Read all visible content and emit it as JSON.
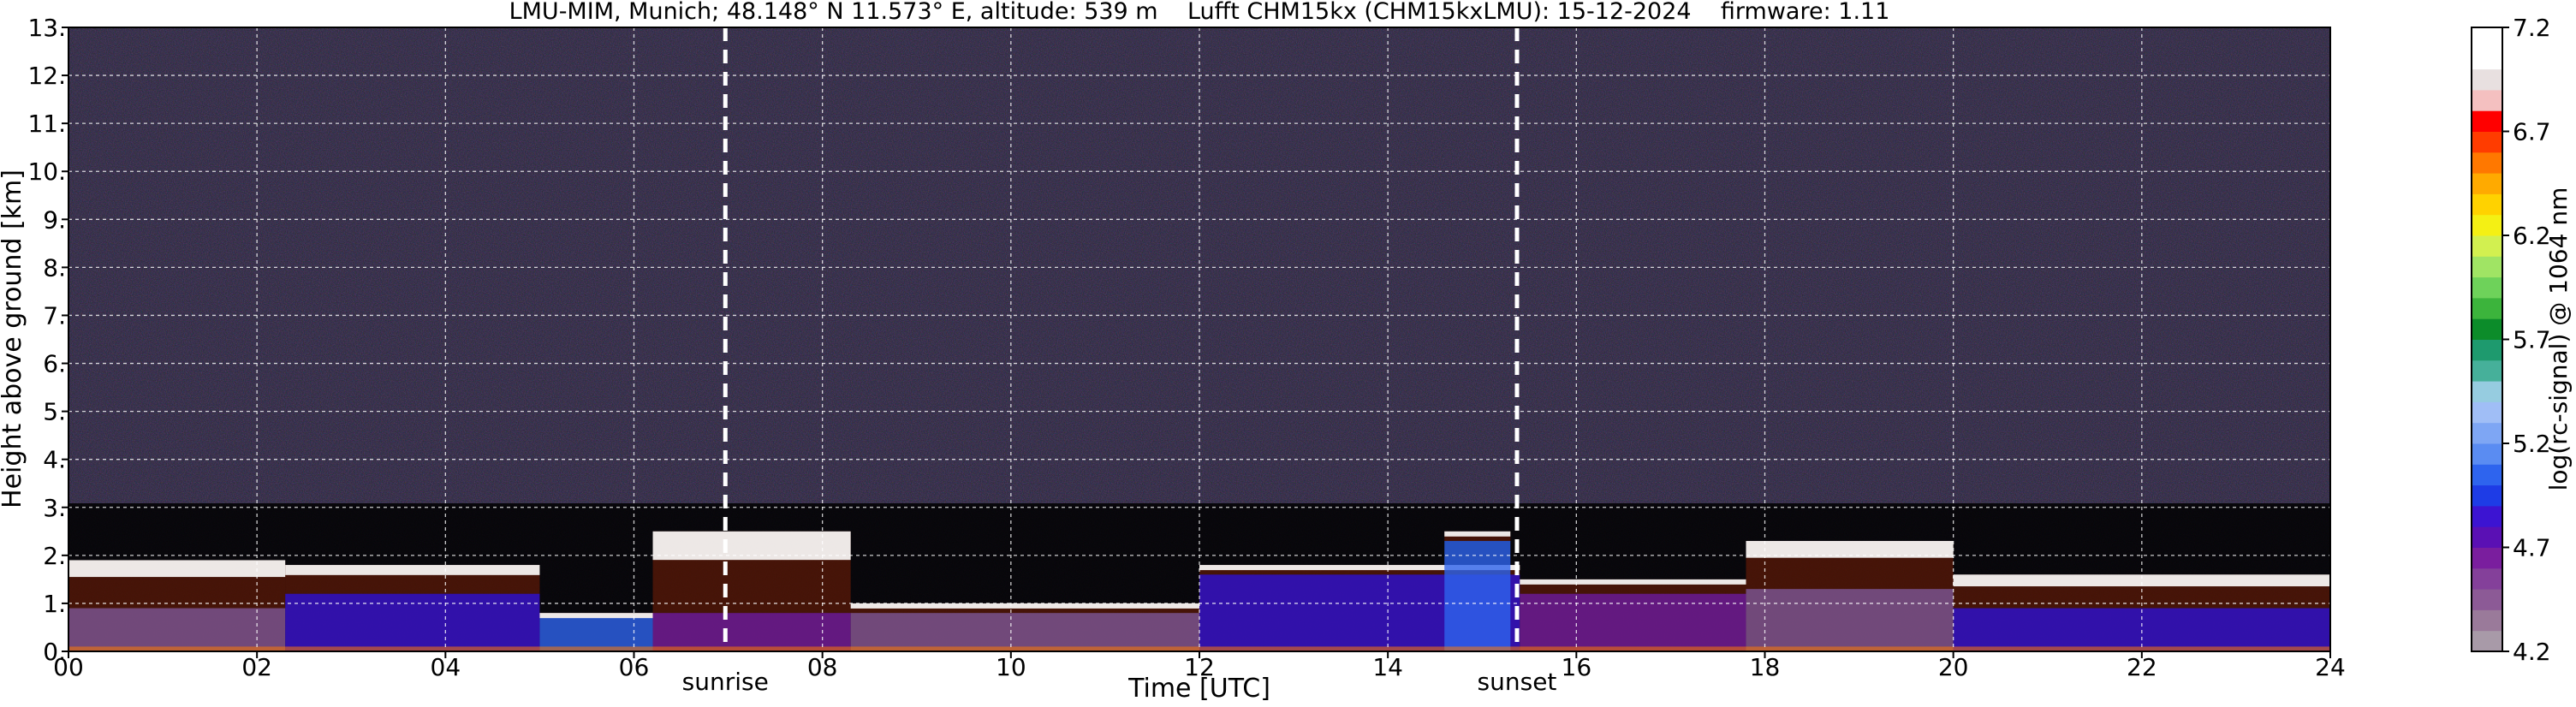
{
  "chart_data": {
    "type": "heatmap",
    "title": "LMU-MIM, Munich; 48.148° N 11.573° E, altitude: 539 m    Lufft CHM15kx (CHM15kxLMU): 15-12-2024    firmware: 1.11",
    "xlabel": "Time [UTC]",
    "ylabel": "Height above ground [km]",
    "xlim": [
      0,
      24
    ],
    "ylim": [
      0,
      13
    ],
    "xticks": [
      "00",
      "02",
      "04",
      "06",
      "08",
      "10",
      "12",
      "14",
      "16",
      "18",
      "20",
      "22",
      "24"
    ],
    "yticks": [
      "0.",
      "1.",
      "2.",
      "3.",
      "4.",
      "5.",
      "6.",
      "7.",
      "8.",
      "9.",
      "10.",
      "11.",
      "12.",
      "13."
    ],
    "grid": true,
    "markers": [
      {
        "label": "sunrise",
        "time": 6.97
      },
      {
        "label": "sunset",
        "time": 15.37
      }
    ],
    "colorbar": {
      "label": "log(rc-signal) @ 1064 nm",
      "range": [
        4.2,
        7.2
      ],
      "ticks": [
        "4.2",
        "4.7",
        "5.2",
        "5.7",
        "6.2",
        "6.7",
        "7.2"
      ],
      "colors": [
        "#a89aa8",
        "#9a7a9a",
        "#8c5a96",
        "#84409a",
        "#7a1e9e",
        "#5a10b4",
        "#3c14d2",
        "#1e3ce6",
        "#2e64ee",
        "#5a8cf2",
        "#7ea6f4",
        "#a0bef6",
        "#96cce0",
        "#46b09a",
        "#1e9a6e",
        "#0c8c2a",
        "#3cb43c",
        "#6ed25a",
        "#a0e464",
        "#d2f050",
        "#f4f014",
        "#ffd200",
        "#ffaa00",
        "#ff7800",
        "#ff3c00",
        "#ff0000",
        "#f4c0c0",
        "#e8e0e0",
        "#ffffff",
        "#ffffff"
      ]
    },
    "background_colors": {
      "noise": "#2a2040",
      "low_signal": "#000000"
    },
    "cloud_layers": [
      {
        "start": 0.0,
        "end": 2.3,
        "base": 0.9,
        "top": 1.9
      },
      {
        "start": 2.3,
        "end": 5.0,
        "base": 1.2,
        "top": 1.8
      },
      {
        "start": 5.0,
        "end": 6.2,
        "base": 0.7,
        "top": 0.8
      },
      {
        "start": 6.2,
        "end": 8.3,
        "base": 0.8,
        "top": 2.5
      },
      {
        "start": 8.3,
        "end": 12.0,
        "base": 0.8,
        "top": 1.0
      },
      {
        "start": 12.0,
        "end": 15.4,
        "base": 1.6,
        "top": 1.8
      },
      {
        "start": 14.6,
        "end": 15.3,
        "base": 2.3,
        "top": 2.5
      },
      {
        "start": 15.4,
        "end": 17.8,
        "base": 1.2,
        "top": 1.5
      },
      {
        "start": 17.8,
        "end": 20.0,
        "base": 1.3,
        "top": 2.3
      },
      {
        "start": 20.0,
        "end": 24.0,
        "base": 0.9,
        "top": 1.6
      }
    ]
  }
}
